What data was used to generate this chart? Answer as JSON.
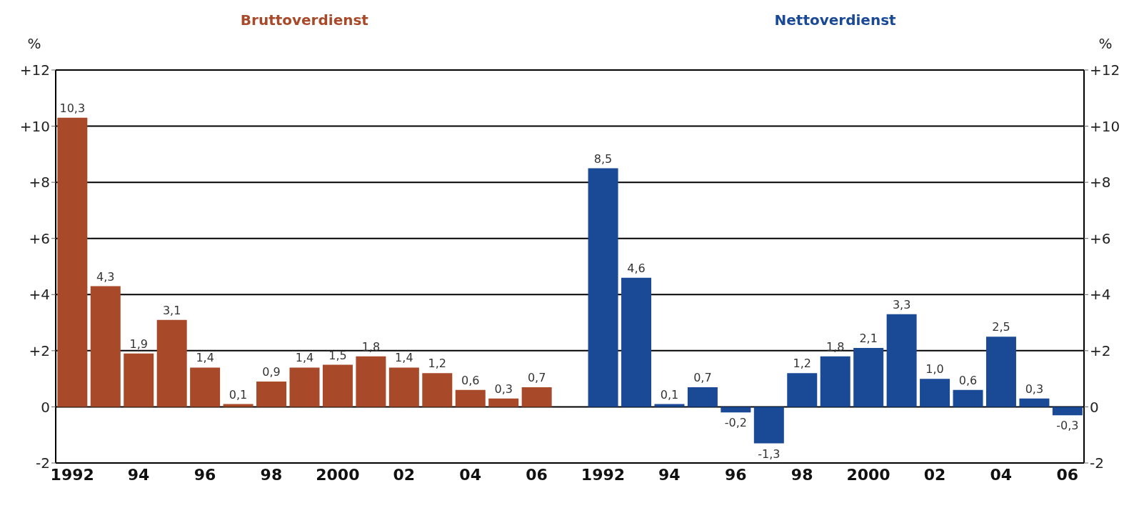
{
  "chart_data": {
    "type": "bar",
    "categories": [
      "1992",
      null,
      "94",
      null,
      "96",
      null,
      "98",
      null,
      "2000",
      null,
      "02",
      null,
      "04",
      null,
      "06",
      null,
      "1992",
      null,
      "94",
      null,
      "96",
      null,
      "98",
      null,
      "2000",
      null,
      "02",
      null,
      "04",
      null,
      "06"
    ],
    "series": [
      {
        "name": "Bruttoverdienst",
        "color": "#a84a2a",
        "values": [
          10.3,
          4.3,
          1.9,
          3.1,
          1.4,
          0.1,
          0.9,
          1.4,
          1.5,
          1.8,
          1.4,
          1.2,
          0.6,
          0.3,
          0.7,
          null,
          null,
          null,
          null,
          null,
          null,
          null,
          null,
          null,
          null,
          null,
          null,
          null,
          null,
          null,
          null
        ],
        "value_labels": [
          "10,3",
          "4,3",
          "1,9",
          "3,1",
          "1,4",
          "0,1",
          "0,9",
          "1,4",
          "1,5",
          "1,8",
          "1,4",
          "1,2",
          "0,6",
          "0,3",
          "0,7",
          null,
          null,
          null,
          null,
          null,
          null,
          null,
          null,
          null,
          null,
          null,
          null,
          null,
          null,
          null,
          null
        ]
      },
      {
        "name": "Nettoverdienst",
        "color": "#1a4a96",
        "values": [
          null,
          null,
          null,
          null,
          null,
          null,
          null,
          null,
          null,
          null,
          null,
          null,
          null,
          null,
          null,
          null,
          8.5,
          4.6,
          0.1,
          0.7,
          -0.2,
          -1.3,
          1.2,
          1.8,
          2.1,
          3.3,
          1.0,
          0.6,
          2.5,
          0.3,
          -0.3
        ],
        "value_labels": [
          null,
          null,
          null,
          null,
          null,
          null,
          null,
          null,
          null,
          null,
          null,
          null,
          null,
          null,
          null,
          null,
          "8,5",
          "4,6",
          "0,1",
          "0,7",
          "-0,2",
          "-1,3",
          "1,2",
          "1,8",
          "2,1",
          "3,3",
          "1,0",
          "0,6",
          "2,5",
          "0,3",
          "-0,3"
        ]
      }
    ],
    "ylabel": "%",
    "y2label": "%",
    "ylim": [
      -2,
      12
    ],
    "yticks": [
      {
        "value": -2,
        "label": "-2"
      },
      0,
      {
        "value": 2,
        "label": "+2"
      },
      {
        "value": 4,
        "label": "+4"
      },
      {
        "value": 6,
        "label": "+6"
      },
      {
        "value": 8,
        "label": "+8"
      },
      {
        "value": 10,
        "label": "+10"
      },
      {
        "value": 12,
        "label": "+12"
      }
    ],
    "y2lim": [
      -2,
      12
    ],
    "y2ticks": [
      {
        "value": -2,
        "label": "-2"
      },
      0,
      {
        "value": 2,
        "label": "+2"
      },
      {
        "value": 4,
        "label": "+4"
      },
      {
        "value": 6,
        "label": "+6"
      },
      {
        "value": 8,
        "label": "+8"
      },
      {
        "value": 10,
        "label": "+10"
      },
      {
        "value": 12,
        "label": "+12"
      }
    ],
    "grid": "y"
  }
}
